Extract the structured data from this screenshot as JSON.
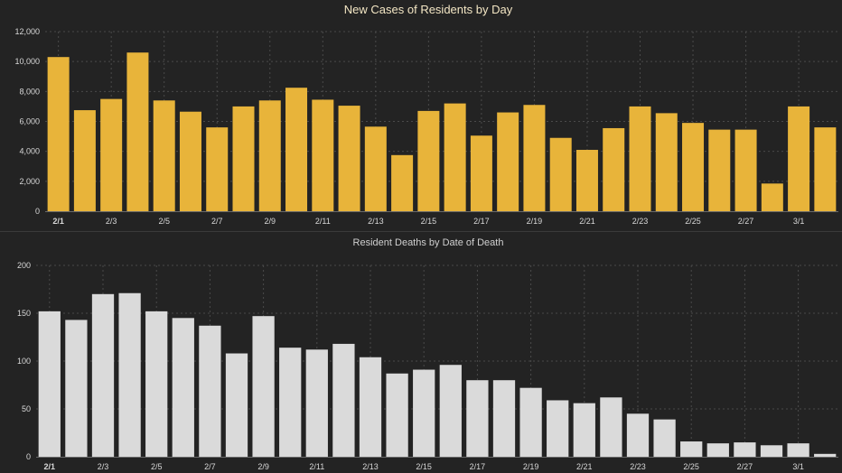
{
  "chart_data": [
    {
      "type": "bar",
      "title": "New Cases of Residents by Day",
      "xlabel": "",
      "ylabel": "",
      "ylim": [
        0,
        12000
      ],
      "yticks": [
        "0",
        "2,000",
        "4,000",
        "6,000",
        "8,000",
        "10,000",
        "12,000"
      ],
      "ytick_values": [
        0,
        2000,
        4000,
        6000,
        8000,
        10000,
        12000
      ],
      "grid": true,
      "color": "#E8B43A",
      "categories": [
        "2/1",
        "2/2",
        "2/3",
        "2/4",
        "2/5",
        "2/6",
        "2/7",
        "2/8",
        "2/9",
        "2/10",
        "2/11",
        "2/12",
        "2/13",
        "2/14",
        "2/15",
        "2/16",
        "2/17",
        "2/18",
        "2/19",
        "2/20",
        "2/21",
        "2/22",
        "2/23",
        "2/24",
        "2/25",
        "2/26",
        "2/27",
        "2/28",
        "3/1",
        "3/2"
      ],
      "xtick_labels": [
        "2/1",
        "2/3",
        "2/5",
        "2/7",
        "2/9",
        "2/11",
        "2/13",
        "2/15",
        "2/17",
        "2/19",
        "2/21",
        "2/23",
        "2/25",
        "2/27",
        "3/1"
      ],
      "values": [
        10300,
        6750,
        7500,
        10600,
        7400,
        6650,
        5600,
        7000,
        7400,
        8250,
        7450,
        7050,
        5650,
        3750,
        6700,
        7200,
        5050,
        6600,
        7100,
        4900,
        4100,
        5550,
        7000,
        6550,
        5900,
        5450,
        5450,
        1850,
        7000,
        5600
      ]
    },
    {
      "type": "bar",
      "title": "Resident Deaths by Date of Death",
      "xlabel": "",
      "ylabel": "",
      "ylim": [
        0,
        200
      ],
      "yticks": [
        "0",
        "50",
        "100",
        "150",
        "200"
      ],
      "ytick_values": [
        0,
        50,
        100,
        150,
        200
      ],
      "grid": true,
      "color": "#DADADA",
      "categories": [
        "2/1",
        "2/2",
        "2/3",
        "2/4",
        "2/5",
        "2/6",
        "2/7",
        "2/8",
        "2/9",
        "2/10",
        "2/11",
        "2/12",
        "2/13",
        "2/14",
        "2/15",
        "2/16",
        "2/17",
        "2/18",
        "2/19",
        "2/20",
        "2/21",
        "2/22",
        "2/23",
        "2/24",
        "2/25",
        "2/26",
        "2/27",
        "2/28",
        "3/1",
        "3/2"
      ],
      "xtick_labels": [
        "2/1",
        "2/3",
        "2/5",
        "2/7",
        "2/9",
        "2/11",
        "2/13",
        "2/15",
        "2/17",
        "2/19",
        "2/21",
        "2/23",
        "2/25",
        "2/27",
        "3/1"
      ],
      "values": [
        152,
        143,
        170,
        171,
        152,
        145,
        137,
        108,
        147,
        114,
        112,
        118,
        104,
        87,
        91,
        96,
        80,
        80,
        72,
        59,
        56,
        62,
        45,
        39,
        16,
        14,
        15,
        12,
        14,
        3
      ]
    }
  ],
  "colors": {
    "background": "#232323",
    "grid": "#4a4a4a",
    "title_top": "#F3E6C4",
    "title_bottom": "#D0D0D0",
    "tick": "#D8D8D8"
  }
}
